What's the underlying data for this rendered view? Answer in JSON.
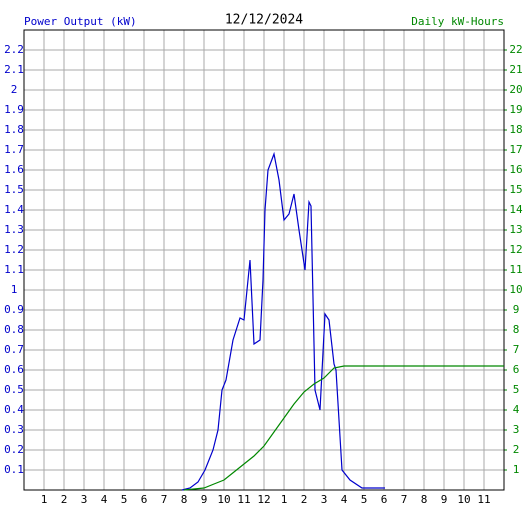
{
  "chart_data": {
    "type": "line",
    "title": "12/12/2024",
    "ylabel": "Power Output (kW)",
    "y2label": "Daily kW-Hours",
    "xlim": [
      0,
      24
    ],
    "xticks": [
      1,
      2,
      3,
      4,
      5,
      6,
      7,
      8,
      9,
      10,
      11,
      12,
      {
        "value": 13,
        "label": "1"
      },
      {
        "value": 14,
        "label": "2"
      },
      {
        "value": 15,
        "label": "3"
      },
      {
        "value": 16,
        "label": "4"
      },
      {
        "value": 17,
        "label": "5"
      },
      {
        "value": 18,
        "label": "6"
      },
      {
        "value": 19,
        "label": "7"
      },
      {
        "value": 20,
        "label": "8"
      },
      {
        "value": 21,
        "label": "9"
      },
      {
        "value": 22,
        "label": "10"
      },
      {
        "value": 23,
        "label": "11"
      }
    ],
    "ylim": [
      0,
      2.3
    ],
    "yticks": [
      0.1,
      0.2,
      0.3,
      0.4,
      0.5,
      0.6,
      0.7,
      0.8,
      0.9,
      1.0,
      1.1,
      1.2,
      1.3,
      1.4,
      1.5,
      1.6,
      1.7,
      1.8,
      1.9,
      2.0,
      2.1,
      2.2
    ],
    "y2lim": [
      0,
      23
    ],
    "y2ticks": [
      1,
      2,
      3,
      4,
      5,
      6,
      7,
      8,
      9,
      10,
      11,
      12,
      13,
      14,
      15,
      16,
      17,
      18,
      19,
      20,
      21,
      22
    ],
    "grid": true,
    "series": [
      {
        "name": "Power Output (kW)",
        "color": "#0000cc",
        "x": [
          7.9,
          8.3,
          8.7,
          9.05,
          9.45,
          9.7,
          9.9,
          10.1,
          10.45,
          10.8,
          11.0,
          11.3,
          11.5,
          11.8,
          11.95,
          12.05,
          12.2,
          12.5,
          12.75,
          13.0,
          13.25,
          13.5,
          13.75,
          14.05,
          14.25,
          14.35,
          14.55,
          14.8,
          15.05,
          15.25,
          15.5,
          15.6,
          15.9,
          16.3,
          16.9,
          18.05
        ],
        "values": [
          0,
          0.01,
          0.04,
          0.1,
          0.2,
          0.3,
          0.5,
          0.55,
          0.75,
          0.86,
          0.85,
          1.15,
          0.73,
          0.75,
          1.05,
          1.4,
          1.6,
          1.68,
          1.55,
          1.35,
          1.38,
          1.48,
          1.3,
          1.1,
          1.44,
          1.42,
          0.5,
          0.4,
          0.88,
          0.85,
          0.63,
          0.6,
          0.1,
          0.05,
          0.01,
          0.01
        ]
      },
      {
        "name": "Daily kW-Hours",
        "color": "#008800",
        "axis": "y2",
        "x": [
          8.0,
          9.0,
          9.5,
          10.0,
          10.5,
          11.0,
          11.5,
          12.0,
          12.5,
          13.0,
          13.5,
          14.0,
          14.5,
          15.0,
          15.5,
          16.0,
          17.0,
          24.0
        ],
        "values": [
          0,
          0.1,
          0.3,
          0.5,
          0.9,
          1.3,
          1.7,
          2.2,
          2.9,
          3.6,
          4.3,
          4.9,
          5.3,
          5.6,
          6.1,
          6.2,
          6.2,
          6.2
        ]
      }
    ]
  }
}
